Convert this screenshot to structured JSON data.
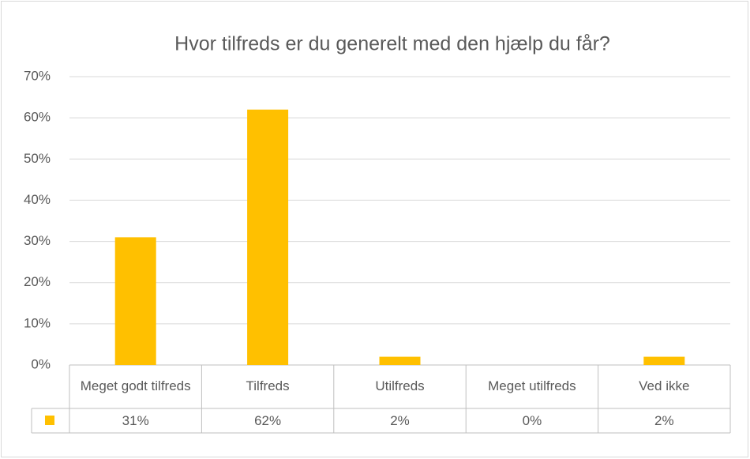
{
  "chart_data": {
    "type": "bar",
    "title": "Hvor tilfreds er du generelt med den hjælp du får?",
    "categories": [
      "Meget godt tilfreds",
      "Tilfreds",
      "Utilfreds",
      "Meget utilfreds",
      "Ved ikke"
    ],
    "values": [
      31,
      62,
      2,
      0,
      2
    ],
    "value_labels": [
      "31%",
      "62%",
      "2%",
      "0%",
      "2%"
    ],
    "color": "#ffc000",
    "ylim": [
      0,
      70
    ],
    "yticks": [
      {
        "value": 0,
        "label": "0%"
      },
      {
        "value": 10,
        "label": "10%"
      },
      {
        "value": 20,
        "label": "20%"
      },
      {
        "value": 30,
        "label": "30%"
      },
      {
        "value": 40,
        "label": "40%"
      },
      {
        "value": 50,
        "label": "50%"
      },
      {
        "value": 60,
        "label": "60%"
      },
      {
        "value": 70,
        "label": "70%"
      }
    ],
    "grid": true,
    "data_table": true
  }
}
